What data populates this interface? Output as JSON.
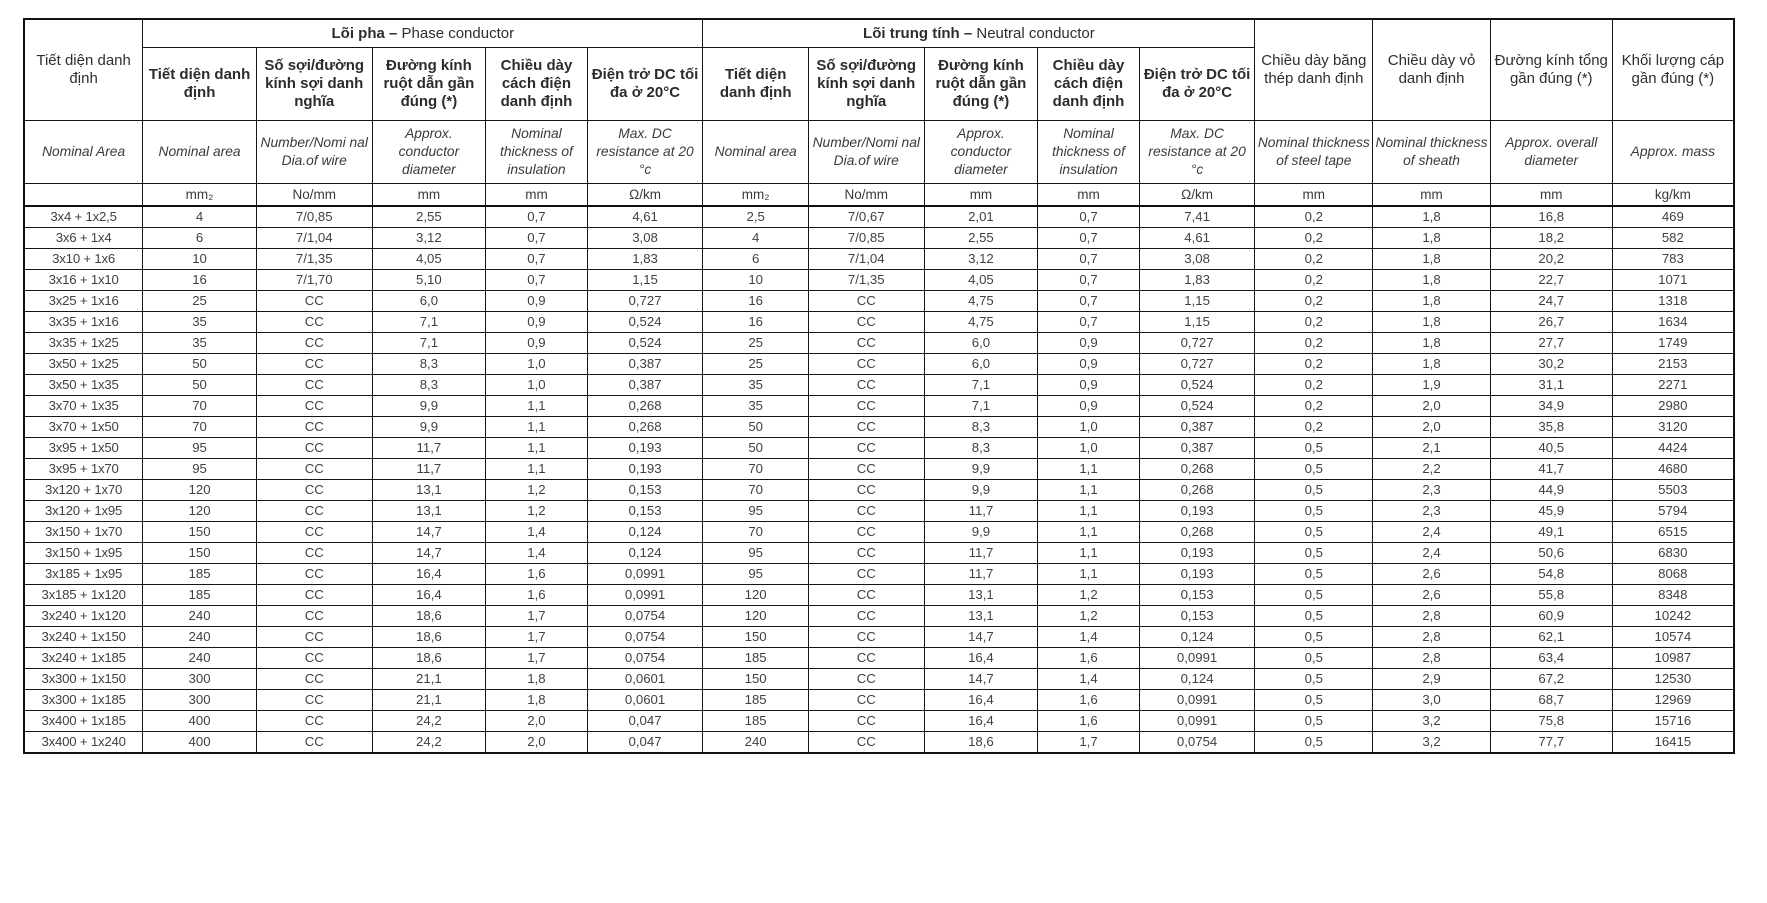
{
  "table": {
    "groups": {
      "phase": {
        "bold": "Lõi pha –",
        "normal": "Phase conductor"
      },
      "neutral": {
        "bold": "Lõi trung tính –",
        "normal": "Neutral conductor"
      }
    },
    "corner": {
      "vi": "Tiết diện danh định",
      "en": "Nominal Area"
    },
    "phase_cols": [
      {
        "vi": "Tiết diện danh định",
        "en": "Nominal  area"
      },
      {
        "vi": "Số sợi/đường kính sợi danh nghĩa",
        "en": "Number/Nomi nal Dia.of wire"
      },
      {
        "vi": "Đường kính ruột dẫn gần đúng (*)",
        "en": "Approx. conductor diameter"
      },
      {
        "vi": "Chiều dày cách điện danh định",
        "en": "Nominal thickness of insulation"
      },
      {
        "vi": "Điện trở DC tối đa ở 20°C",
        "en": "Max. DC resistance at 20 °c"
      }
    ],
    "neutral_cols": [
      {
        "vi": "Tiết diện danh định",
        "en": "Nominal area"
      },
      {
        "vi": "Số sợi/đường kính sợi danh nghĩa",
        "en": "Number/Nomi nal Dia.of wire"
      },
      {
        "vi": "Đường kính ruột dẫn gần đúng (*)",
        "en": "Approx. conductor diameter"
      },
      {
        "vi": "Chiều dày cách điện danh định",
        "en": "Nominal thickness of insulation"
      },
      {
        "vi": "Điện trở DC tối đa ở 20°C",
        "en": "Max. DC resistance at 20 °c"
      }
    ],
    "tail_cols": [
      {
        "vi": "Chiều dày băng thép danh định",
        "en": "Nominal thickness of steel tape"
      },
      {
        "vi": "Chiều dày vỏ danh định",
        "en": "Nominal thickness of sheath"
      },
      {
        "vi": "Đường kính tổng gần đúng (*)",
        "en": "Approx. overall diameter"
      },
      {
        "vi": "Khối lượng cáp gần đúng (*)",
        "en": "Approx. mass"
      }
    ],
    "units": [
      "",
      "mm₂",
      "No/mm",
      "mm",
      "mm",
      "Ω/km",
      "mm₂",
      "No/mm",
      "mm",
      "mm",
      "Ω/km",
      "mm",
      "mm",
      "mm",
      "kg/km"
    ],
    "rows": [
      [
        "3x4 + 1x2,5",
        "4",
        "7/0,85",
        "2,55",
        "0,7",
        "4,61",
        "2,5",
        "7/0,67",
        "2,01",
        "0,7",
        "7,41",
        "0,2",
        "1,8",
        "16,8",
        "469"
      ],
      [
        "3x6 + 1x4",
        "6",
        "7/1,04",
        "3,12",
        "0,7",
        "3,08",
        "4",
        "7/0,85",
        "2,55",
        "0,7",
        "4,61",
        "0,2",
        "1,8",
        "18,2",
        "582"
      ],
      [
        "3x10 + 1x6",
        "10",
        "7/1,35",
        "4,05",
        "0,7",
        "1,83",
        "6",
        "7/1,04",
        "3,12",
        "0,7",
        "3,08",
        "0,2",
        "1,8",
        "20,2",
        "783"
      ],
      [
        "3x16 + 1x10",
        "16",
        "7/1,70",
        "5,10",
        "0,7",
        "1,15",
        "10",
        "7/1,35",
        "4,05",
        "0,7",
        "1,83",
        "0,2",
        "1,8",
        "22,7",
        "1071"
      ],
      [
        "3x25 + 1x16",
        "25",
        "CC",
        "6,0",
        "0,9",
        "0,727",
        "16",
        "CC",
        "4,75",
        "0,7",
        "1,15",
        "0,2",
        "1,8",
        "24,7",
        "1318"
      ],
      [
        "3x35 + 1x16",
        "35",
        "CC",
        "7,1",
        "0,9",
        "0,524",
        "16",
        "CC",
        "4,75",
        "0,7",
        "1,15",
        "0,2",
        "1,8",
        "26,7",
        "1634"
      ],
      [
        "3x35 + 1x25",
        "35",
        "CC",
        "7,1",
        "0,9",
        "0,524",
        "25",
        "CC",
        "6,0",
        "0,9",
        "0,727",
        "0,2",
        "1,8",
        "27,7",
        "1749"
      ],
      [
        "3x50 + 1x25",
        "50",
        "CC",
        "8,3",
        "1,0",
        "0,387",
        "25",
        "CC",
        "6,0",
        "0,9",
        "0,727",
        "0,2",
        "1,8",
        "30,2",
        "2153"
      ],
      [
        "3x50 + 1x35",
        "50",
        "CC",
        "8,3",
        "1,0",
        "0,387",
        "35",
        "CC",
        "7,1",
        "0,9",
        "0,524",
        "0,2",
        "1,9",
        "31,1",
        "2271"
      ],
      [
        "3x70 + 1x35",
        "70",
        "CC",
        "9,9",
        "1,1",
        "0,268",
        "35",
        "CC",
        "7,1",
        "0,9",
        "0,524",
        "0,2",
        "2,0",
        "34,9",
        "2980"
      ],
      [
        "3x70 + 1x50",
        "70",
        "CC",
        "9,9",
        "1,1",
        "0,268",
        "50",
        "CC",
        "8,3",
        "1,0",
        "0,387",
        "0,2",
        "2,0",
        "35,8",
        "3120"
      ],
      [
        "3x95 + 1x50",
        "95",
        "CC",
        "11,7",
        "1,1",
        "0,193",
        "50",
        "CC",
        "8,3",
        "1,0",
        "0,387",
        "0,5",
        "2,1",
        "40,5",
        "4424"
      ],
      [
        "3x95 + 1x70",
        "95",
        "CC",
        "11,7",
        "1,1",
        "0,193",
        "70",
        "CC",
        "9,9",
        "1,1",
        "0,268",
        "0,5",
        "2,2",
        "41,7",
        "4680"
      ],
      [
        "3x120 + 1x70",
        "120",
        "CC",
        "13,1",
        "1,2",
        "0,153",
        "70",
        "CC",
        "9,9",
        "1,1",
        "0,268",
        "0,5",
        "2,3",
        "44,9",
        "5503"
      ],
      [
        "3x120 + 1x95",
        "120",
        "CC",
        "13,1",
        "1,2",
        "0,153",
        "95",
        "CC",
        "11,7",
        "1,1",
        "0,193",
        "0,5",
        "2,3",
        "45,9",
        "5794"
      ],
      [
        "3x150 + 1x70",
        "150",
        "CC",
        "14,7",
        "1,4",
        "0,124",
        "70",
        "CC",
        "9,9",
        "1,1",
        "0,268",
        "0,5",
        "2,4",
        "49,1",
        "6515"
      ],
      [
        "3x150 + 1x95",
        "150",
        "CC",
        "14,7",
        "1,4",
        "0,124",
        "95",
        "CC",
        "11,7",
        "1,1",
        "0,193",
        "0,5",
        "2,4",
        "50,6",
        "6830"
      ],
      [
        "3x185 + 1x95",
        "185",
        "CC",
        "16,4",
        "1,6",
        "0,0991",
        "95",
        "CC",
        "11,7",
        "1,1",
        "0,193",
        "0,5",
        "2,6",
        "54,8",
        "8068"
      ],
      [
        "3x185 + 1x120",
        "185",
        "CC",
        "16,4",
        "1,6",
        "0,0991",
        "120",
        "CC",
        "13,1",
        "1,2",
        "0,153",
        "0,5",
        "2,6",
        "55,8",
        "8348"
      ],
      [
        "3x240 + 1x120",
        "240",
        "CC",
        "18,6",
        "1,7",
        "0,0754",
        "120",
        "CC",
        "13,1",
        "1,2",
        "0,153",
        "0,5",
        "2,8",
        "60,9",
        "10242"
      ],
      [
        "3x240 + 1x150",
        "240",
        "CC",
        "18,6",
        "1,7",
        "0,0754",
        "150",
        "CC",
        "14,7",
        "1,4",
        "0,124",
        "0,5",
        "2,8",
        "62,1",
        "10574"
      ],
      [
        "3x240 + 1x185",
        "240",
        "CC",
        "18,6",
        "1,7",
        "0,0754",
        "185",
        "CC",
        "16,4",
        "1,6",
        "0,0991",
        "0,5",
        "2,8",
        "63,4",
        "10987"
      ],
      [
        "3x300 + 1x150",
        "300",
        "CC",
        "21,1",
        "1,8",
        "0,0601",
        "150",
        "CC",
        "14,7",
        "1,4",
        "0,124",
        "0,5",
        "2,9",
        "67,2",
        "12530"
      ],
      [
        "3x300 + 1x185",
        "300",
        "CC",
        "21,1",
        "1,8",
        "0,0601",
        "185",
        "CC",
        "16,4",
        "1,6",
        "0,0991",
        "0,5",
        "3,0",
        "68,7",
        "12969"
      ],
      [
        "3x400 + 1x185",
        "400",
        "CC",
        "24,2",
        "2,0",
        "0,047",
        "185",
        "CC",
        "16,4",
        "1,6",
        "0,0991",
        "0,5",
        "3,2",
        "75,8",
        "15716"
      ],
      [
        "3x400 + 1x240",
        "400",
        "CC",
        "24,2",
        "2,0",
        "0,047",
        "240",
        "CC",
        "18,6",
        "1,7",
        "0,0754",
        "0,5",
        "3,2",
        "77,7",
        "16415"
      ]
    ]
  }
}
